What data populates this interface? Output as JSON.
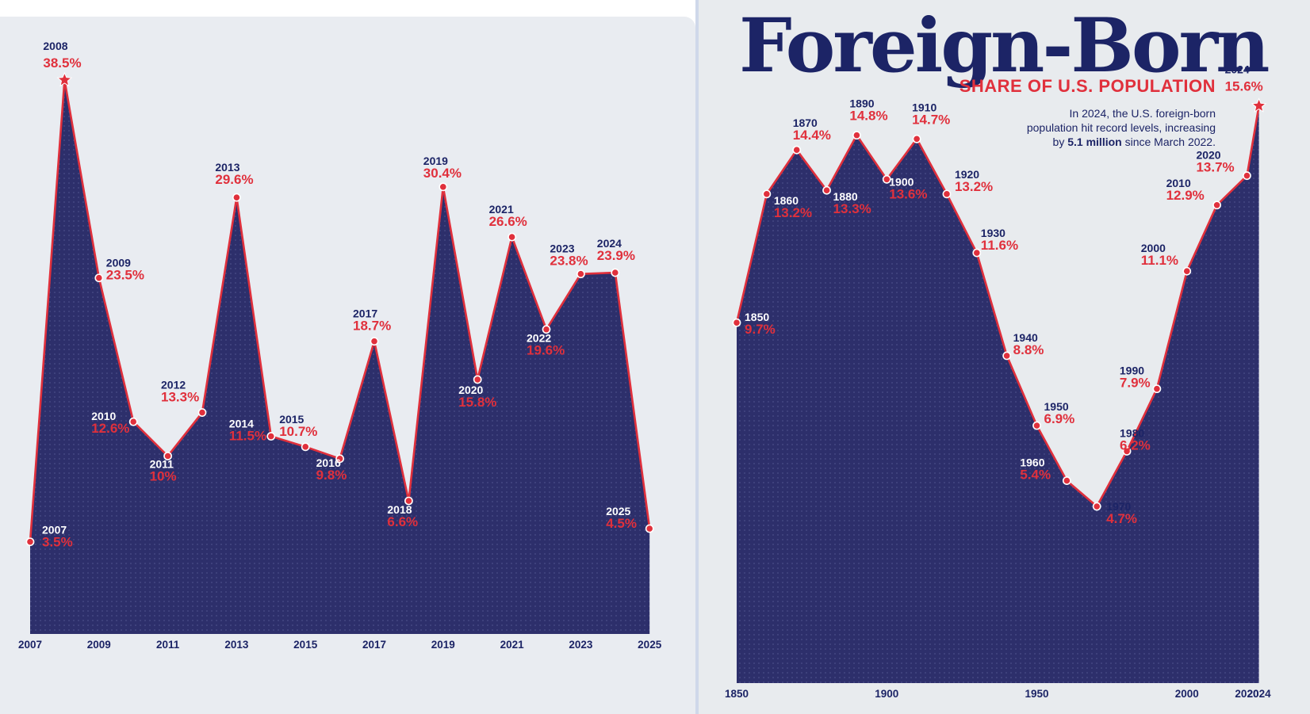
{
  "chart_data": [
    {
      "type": "area",
      "title": "",
      "xlabel": "",
      "ylabel": "",
      "x": [
        "2007",
        "2008",
        "2009",
        "2010",
        "2011",
        "2012",
        "2013",
        "2014",
        "2015",
        "2016",
        "2017",
        "2018",
        "2019",
        "2020",
        "2021",
        "2022",
        "2023",
        "2024",
        "2025"
      ],
      "values": [
        3.5,
        38.5,
        23.5,
        12.6,
        10,
        13.3,
        29.6,
        11.5,
        10.7,
        9.8,
        18.7,
        6.6,
        30.4,
        15.8,
        26.6,
        19.6,
        23.8,
        23.9,
        4.5
      ],
      "value_labels": [
        "3.5%",
        "38.5%",
        "23.5%",
        "12.6%",
        "10%",
        "13.3%",
        "29.6%",
        "11.5%",
        "10.7%",
        "9.8%",
        "18.7%",
        "6.6%",
        "30.4%",
        "15.8%",
        "26.6%",
        "19.6%",
        "23.8%",
        "23.9%",
        "4.5%"
      ],
      "x_ticks": [
        "2007",
        "2009",
        "2011",
        "2013",
        "2015",
        "2017",
        "2019",
        "2021",
        "2023",
        "2025"
      ],
      "ylim": [
        0,
        40
      ],
      "grid": false,
      "legend": "none",
      "colors": {
        "fill": "#2d2f6b",
        "line": "#e0303c",
        "year_label_inside": "#ffffff",
        "year_label_outside": "#1c2466",
        "value_label": "#e0303c"
      }
    },
    {
      "type": "area",
      "title": "Foreign-Born",
      "subtitle": "SHARE OF U.S. POPULATION",
      "note_lines": [
        "In 2024, the U.S. foreign-born",
        "population hit record levels, increasing"
      ],
      "note_last_prefix": "by",
      "note_last_bold": "5.1 million",
      "note_last_suffix": "since March 2022.",
      "xlabel": "",
      "ylabel": "",
      "x": [
        "1850",
        "1860",
        "1870",
        "1880",
        "1890",
        "1900",
        "1910",
        "1920",
        "1930",
        "1940",
        "1950",
        "1960",
        "1970",
        "1980",
        "1990",
        "2000",
        "2010",
        "2020",
        "2024"
      ],
      "x_numeric": [
        1850,
        1860,
        1870,
        1880,
        1890,
        1900,
        1910,
        1920,
        1930,
        1940,
        1950,
        1960,
        1970,
        1980,
        1990,
        2000,
        2010,
        2020,
        2024
      ],
      "values": [
        9.7,
        13.2,
        14.4,
        13.3,
        14.8,
        13.6,
        14.7,
        13.2,
        11.6,
        8.8,
        6.9,
        5.4,
        4.7,
        6.2,
        7.9,
        11.1,
        12.9,
        13.7,
        15.6
      ],
      "value_labels": [
        "9.7%",
        "13.2%",
        "14.4%",
        "13.3%",
        "14.8%",
        "13.6%",
        "14.7%",
        "13.2%",
        "11.6%",
        "8.8%",
        "6.9%",
        "5.4%",
        "4.7%",
        "6.2%",
        "7.9%",
        "11.1%",
        "12.9%",
        "13.7%",
        "15.6%"
      ],
      "x_ticks": [
        "1850",
        "1900",
        "1950",
        "2000",
        "2020",
        "2024"
      ],
      "ylim": [
        0,
        16
      ],
      "grid": false,
      "legend": "none",
      "colors": {
        "fill": "#2d2f6b",
        "line": "#e0303c",
        "title": "#1c2466",
        "subtitle": "#e0303c",
        "year_label_inside": "#ffffff",
        "year_label_outside": "#1c2466",
        "value_label": "#e0303c"
      }
    }
  ]
}
